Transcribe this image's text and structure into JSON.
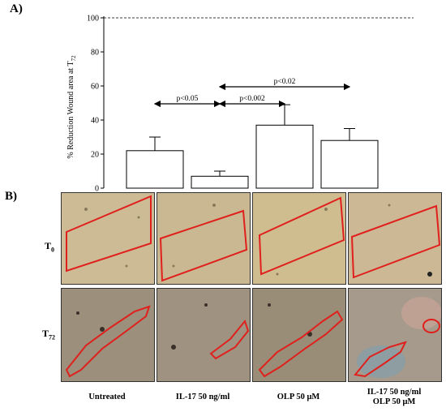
{
  "panel_a_label": "A)",
  "panel_b_label": "B)",
  "chart_data": {
    "type": "bar",
    "ylabel": "% Reduction Wound area at T72",
    "ylabel_main": "% Reduction Wound area at T",
    "ylabel_sub": "72",
    "ylim": [
      0,
      100
    ],
    "yticks": [
      "0",
      "20",
      "40",
      "60",
      "80",
      "100"
    ],
    "reference_line": {
      "value": 100,
      "style": "dashed"
    },
    "values": [
      22,
      7,
      37,
      28
    ],
    "errors": [
      8,
      3,
      12,
      7
    ],
    "bar_color": "#ffffff",
    "comparisons": [
      {
        "from": 0,
        "to": 1,
        "label": "p<0.05"
      },
      {
        "from": 1,
        "to": 2,
        "label": "p<0.002"
      },
      {
        "from": 1,
        "to": 3,
        "label": "p<0.02"
      }
    ]
  },
  "rows": [
    {
      "main": "T",
      "sub": "0"
    },
    {
      "main": "T",
      "sub": "72"
    }
  ],
  "columns": [
    {
      "line1": "Untreated",
      "line2": ""
    },
    {
      "line1": "IL-17 50 ng/ml",
      "line2": ""
    },
    {
      "line1": "OLP 50 μM",
      "line2": ""
    },
    {
      "line1": "IL-17 50 ng/ml",
      "line2": "OLP 50 μM"
    }
  ],
  "colors": {
    "wound_outline": "#e0201c",
    "bg_t0": "#cdbb96",
    "bg_t72": "#9c8f7c"
  }
}
